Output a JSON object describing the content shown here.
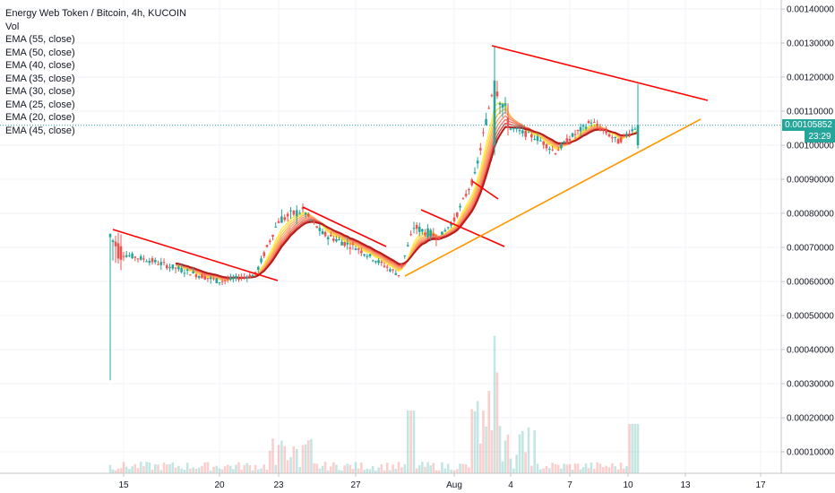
{
  "chart_data": {
    "type": "candlestick",
    "title": "Energy Web Token / Bitcoin, 4h, KUCOIN",
    "legend": [
      "Vol",
      "EMA (55, close)",
      "EMA (50, close)",
      "EMA (40, close)",
      "EMA (35, close)",
      "EMA (30, close)",
      "EMA (25, close)",
      "EMA (20, close)",
      "EMA (45, close)"
    ],
    "y_ticks": [
      "0.00140000",
      "0.00130000",
      "0.00120000",
      "0.00110000",
      "0.00100000",
      "0.00090000",
      "0.00080000",
      "0.00070000",
      "0.00060000",
      "0.00050000",
      "0.00040000",
      "0.00030000",
      "0.00020000",
      "0.00010000"
    ],
    "y_values": [
      0.0014,
      0.0013,
      0.0012,
      0.0011,
      0.001,
      0.0009,
      0.0008,
      0.0007,
      0.0006,
      0.0005,
      0.0004,
      0.0003,
      0.0002,
      0.0001
    ],
    "ylim": [
      0.0,
      0.00145
    ],
    "x_ticks": [
      "15",
      "20",
      "23",
      "27",
      "Aug",
      "4",
      "7",
      "10",
      "13",
      "17"
    ],
    "last_price": "0.00105852",
    "countdown": "23:29",
    "colors": {
      "up": "#26a69a",
      "down": "#ef5350",
      "trend": "#ff0000",
      "support": "#ff9800",
      "ema_light": "#ffeb3b",
      "ema_dark": "#b71c1c",
      "price_line": "#26a69a"
    },
    "keypoints": [
      {
        "t": "Jul 14",
        "o": 0.00073,
        "c": 0.00073,
        "h": 0.00074,
        "l": 0.00031
      },
      {
        "t": "Jul 15",
        "o": 0.00072,
        "c": 0.00068,
        "h": 0.00075,
        "l": 0.00066
      },
      {
        "t": "Jul 17",
        "o": 0.00064,
        "c": 0.00066,
        "h": 0.00068,
        "l": 0.00058
      },
      {
        "t": "Jul 20",
        "o": 0.00063,
        "c": 0.0006,
        "h": 0.00065,
        "l": 0.00057
      },
      {
        "t": "Jul 22",
        "o": 0.0006,
        "c": 0.00062,
        "h": 0.00065,
        "l": 0.00055
      },
      {
        "t": "Jul 23",
        "o": 0.00065,
        "c": 0.00078,
        "h": 0.0008,
        "l": 0.00063
      },
      {
        "t": "Jul 24",
        "o": 0.00076,
        "c": 0.00081,
        "h": 0.00082,
        "l": 0.00072
      },
      {
        "t": "Jul 25",
        "o": 0.00081,
        "c": 0.00074,
        "h": 0.00082,
        "l": 0.0007
      },
      {
        "t": "Jul 27",
        "o": 0.00072,
        "c": 0.0007,
        "h": 0.00075,
        "l": 0.00066
      },
      {
        "t": "Jul 29",
        "o": 0.00066,
        "c": 0.00062,
        "h": 0.00069,
        "l": 0.00061
      },
      {
        "t": "Jul 30",
        "o": 0.00065,
        "c": 0.00076,
        "h": 0.00078,
        "l": 0.00064
      },
      {
        "t": "Jul 31",
        "o": 0.00074,
        "c": 0.00073,
        "h": 0.00077,
        "l": 0.0007
      },
      {
        "t": "Aug 1",
        "o": 0.00072,
        "c": 0.00078,
        "h": 0.0008,
        "l": 0.0007
      },
      {
        "t": "Aug 2",
        "o": 0.0008,
        "c": 0.00091,
        "h": 0.00092,
        "l": 0.00079
      },
      {
        "t": "Aug 3",
        "o": 0.001,
        "c": 0.00119,
        "h": 0.00129,
        "l": 0.00097
      },
      {
        "t": "Aug 4",
        "o": 0.00108,
        "c": 0.00105,
        "h": 0.0011,
        "l": 0.001
      },
      {
        "t": "Aug 5",
        "o": 0.00106,
        "c": 0.00102,
        "h": 0.00108,
        "l": 0.00098
      },
      {
        "t": "Aug 6",
        "o": 0.00101,
        "c": 0.00098,
        "h": 0.00104,
        "l": 0.00094
      },
      {
        "t": "Aug 7",
        "o": 0.00098,
        "c": 0.00102,
        "h": 0.00105,
        "l": 0.00094
      },
      {
        "t": "Aug 8",
        "o": 0.00102,
        "c": 0.00107,
        "h": 0.00109,
        "l": 0.00099
      },
      {
        "t": "Aug 9",
        "o": 0.00106,
        "c": 0.00101,
        "h": 0.00108,
        "l": 0.00098
      },
      {
        "t": "Aug 10",
        "o": 0.001,
        "c": 0.00106,
        "h": 0.00118,
        "l": 0.00099
      }
    ]
  }
}
